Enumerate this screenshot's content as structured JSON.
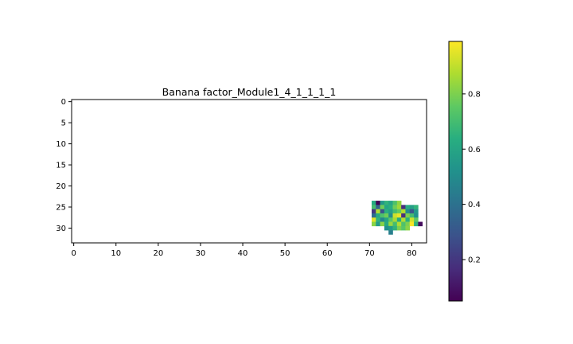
{
  "chart_data": {
    "type": "heatmap",
    "title": "Banana factor_Module1_4_1_1_1_1",
    "xlabel": "",
    "ylabel": "",
    "x_ticks": [
      0,
      10,
      20,
      30,
      40,
      50,
      60,
      70,
      80
    ],
    "y_ticks": [
      0,
      5,
      10,
      15,
      20,
      25,
      30
    ],
    "xlim": [
      -0.5,
      83.5
    ],
    "ylim": [
      33.5,
      -0.5
    ],
    "y_inverted": true,
    "grid": false,
    "colormap": "viridis",
    "colorbar": {
      "placement": "right",
      "ticks": [
        0.2,
        0.4,
        0.6,
        0.8
      ],
      "range": [
        0.05,
        0.99
      ]
    },
    "cells": {
      "col_start": 71,
      "row_start": 24,
      "values": [
        [
          0.62,
          0.05,
          0.55,
          0.66,
          0.6,
          0.72,
          0.83,
          null,
          null,
          null,
          null,
          null
        ],
        [
          0.7,
          0.35,
          0.78,
          0.6,
          0.64,
          0.78,
          0.85,
          0.18,
          0.62,
          0.58,
          0.66,
          null
        ],
        [
          0.2,
          0.88,
          0.3,
          0.64,
          0.58,
          0.7,
          0.76,
          0.88,
          0.5,
          0.3,
          0.55,
          null
        ],
        [
          0.38,
          0.62,
          0.72,
          0.78,
          0.5,
          0.92,
          0.96,
          0.18,
          0.8,
          0.7,
          0.52,
          null
        ],
        [
          0.95,
          0.66,
          0.48,
          0.6,
          0.74,
          0.86,
          0.62,
          0.88,
          0.64,
          0.92,
          0.76,
          null
        ],
        [
          0.82,
          0.56,
          0.82,
          0.62,
          0.84,
          0.7,
          0.88,
          0.72,
          0.8,
          0.98,
          0.66,
          0.08
        ],
        [
          null,
          null,
          null,
          0.52,
          0.56,
          0.66,
          0.8,
          0.74,
          0.82,
          null,
          null,
          null
        ],
        [
          null,
          null,
          null,
          null,
          0.45,
          null,
          null,
          null,
          null,
          null,
          null,
          null
        ]
      ]
    }
  }
}
